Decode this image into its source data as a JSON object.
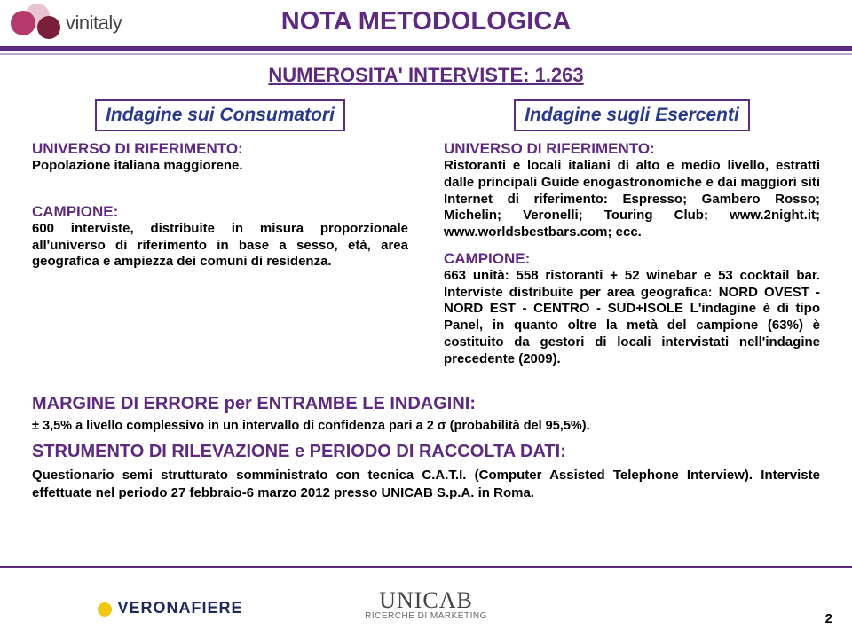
{
  "brand": {
    "name": "vinitaly"
  },
  "title": "NOTA METODOLOGICA",
  "subtitle": "NUMEROSITA' INTERVISTE: 1.263",
  "left": {
    "box": "Indagine sui Consumatori",
    "universo_head": "UNIVERSO DI RIFERIMENTO:",
    "universo_body": "Popolazione italiana maggiorene.",
    "campione_head": "CAMPIONE:",
    "campione_body": "600 interviste, distribuite in misura proporzionale all'universo di riferimento in base a sesso, età, area geografica e ampiezza dei comuni di residenza."
  },
  "right": {
    "box": "Indagine sugli Esercenti",
    "universo_head": "UNIVERSO DI RIFERIMENTO:",
    "universo_body": "Ristoranti e locali italiani di alto e medio livello, estratti dalle principali Guide enogastronomiche e dai maggiori siti Internet di riferimento: Espresso; Gambero Rosso; Michelin; Veronelli; Touring Club; www.2night.it; www.worldsbestbars.com; ecc.",
    "campione_head": "CAMPIONE:",
    "campione_body": "663 unità: 558 ristoranti + 52 winebar e 53 cocktail bar. Interviste distribuite per area geografica: NORD OVEST - NORD EST - CENTRO - SUD+ISOLE L'indagine è di tipo Panel, in quanto oltre la metà del campione (63%) è costituito da gestori di locali intervistati nell'indagine precedente (2009)."
  },
  "margin": {
    "head": "MARGINE DI ERRORE per ENTRAMBE LE INDAGINI:",
    "body": "± 3,5% a livello complessivo in un intervallo di confidenza pari a 2 σ (probabilità del 95,5%)."
  },
  "strumento": {
    "head": "STRUMENTO DI RILEVAZIONE e PERIODO DI RACCOLTA DATI:",
    "body": "Questionario semi strutturato somministrato con tecnica C.A.T.I. (Computer Assisted Telephone Interview). Interviste effettuate nel periodo 27 febbraio-6 marzo 2012 presso UNICAB S.p.A. in Roma."
  },
  "footer": {
    "left": "VERONAFIERE",
    "center": "UNICAB",
    "center_sub": "RICERCHE DI MARKETING",
    "page": "2"
  }
}
